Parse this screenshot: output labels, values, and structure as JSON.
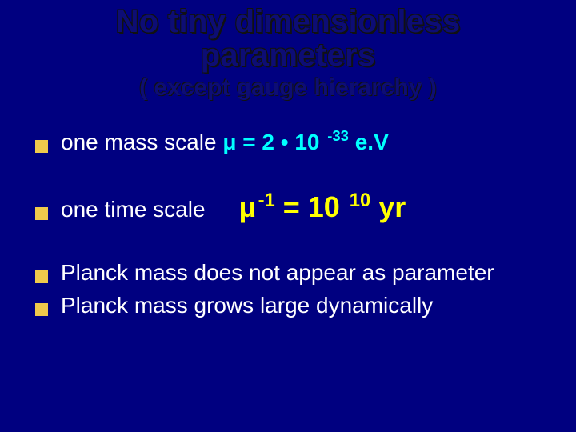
{
  "background_color": "#000080",
  "colors": {
    "text_white": "#ffffff",
    "title_blue": "#0d0d75",
    "title_shadow": "#111111",
    "bullet_fill": "#efc94c",
    "accent_cyan": "#00ffff",
    "accent_yellow": "#ffff00"
  },
  "fonts": {
    "family": "Arial, Helvetica, sans-serif",
    "title_size_pt": 40,
    "subtitle_size_pt": 30,
    "bullet_size_pt": 28,
    "formula_size_pt": 36
  },
  "title": {
    "line1": "No tiny dimensionless",
    "line2": "parameters",
    "sub": "( except gauge hierarchy )"
  },
  "bullets": [
    {
      "text": "one mass scale ",
      "formula_prefix": "μ = 2 ",
      "formula_dot": "•",
      "formula_mid": " 10 ",
      "formula_sup": "-33",
      "formula_suffix": " e.V",
      "formula_color_key": "accent_cyan"
    },
    {
      "text": "one time scale",
      "formula_prefix": "μ",
      "formula_sup1": "-1",
      "formula_mid": " =  10 ",
      "formula_sup2": "10",
      "formula_suffix": " yr",
      "formula_color_key": "accent_yellow"
    },
    {
      "text": "Planck mass does not appear as parameter"
    },
    {
      "text": "Planck mass grows large dynamically"
    }
  ]
}
